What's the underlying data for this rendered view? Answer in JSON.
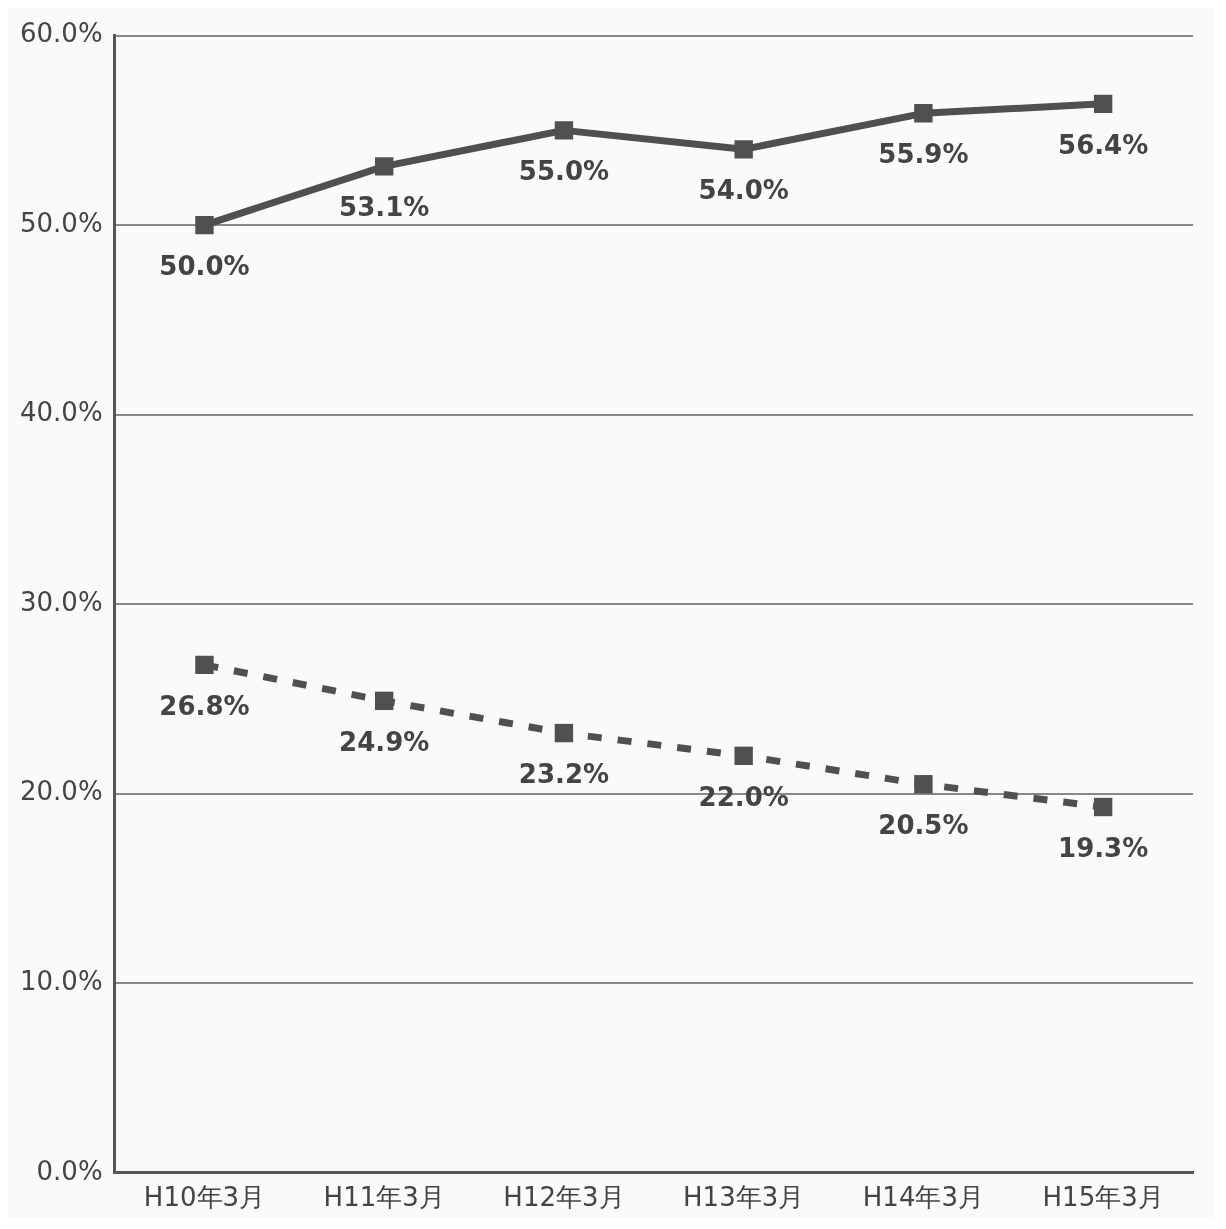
{
  "chart_data": {
    "type": "line",
    "categories": [
      "H10年3月",
      "H11年3月",
      "H12年3月",
      "H13年3月",
      "H14年3月",
      "H15年3月"
    ],
    "series": [
      {
        "color": "#505050",
        "values": [
          50.0,
          53.1,
          55.0,
          54.0,
          55.9,
          56.4
        ],
        "value_labels": [
          "50.0%",
          "53.1%",
          "55.0%",
          "54.0%",
          "55.9%",
          "56.4%"
        ],
        "line_style": "solid"
      },
      {
        "color": "#505050",
        "values": [
          26.8,
          24.9,
          23.2,
          22.0,
          20.5,
          19.3
        ],
        "value_labels": [
          "26.8%",
          "24.9%",
          "23.2%",
          "22.0%",
          "20.5%",
          "19.3%"
        ],
        "line_style": "dashed"
      }
    ],
    "ylim": [
      0,
      60
    ],
    "yticks": [
      {
        "value": 0,
        "label": "0.0%"
      },
      {
        "value": 10,
        "label": "10.0%"
      },
      {
        "value": 20,
        "label": "20.0%"
      },
      {
        "value": 30,
        "label": "30.0%"
      },
      {
        "value": 40,
        "label": "40.0%"
      },
      {
        "value": 50,
        "label": "50.0%"
      },
      {
        "value": 60,
        "label": "60.0%"
      }
    ],
    "grid": "y",
    "marker": "square",
    "legend": false
  }
}
